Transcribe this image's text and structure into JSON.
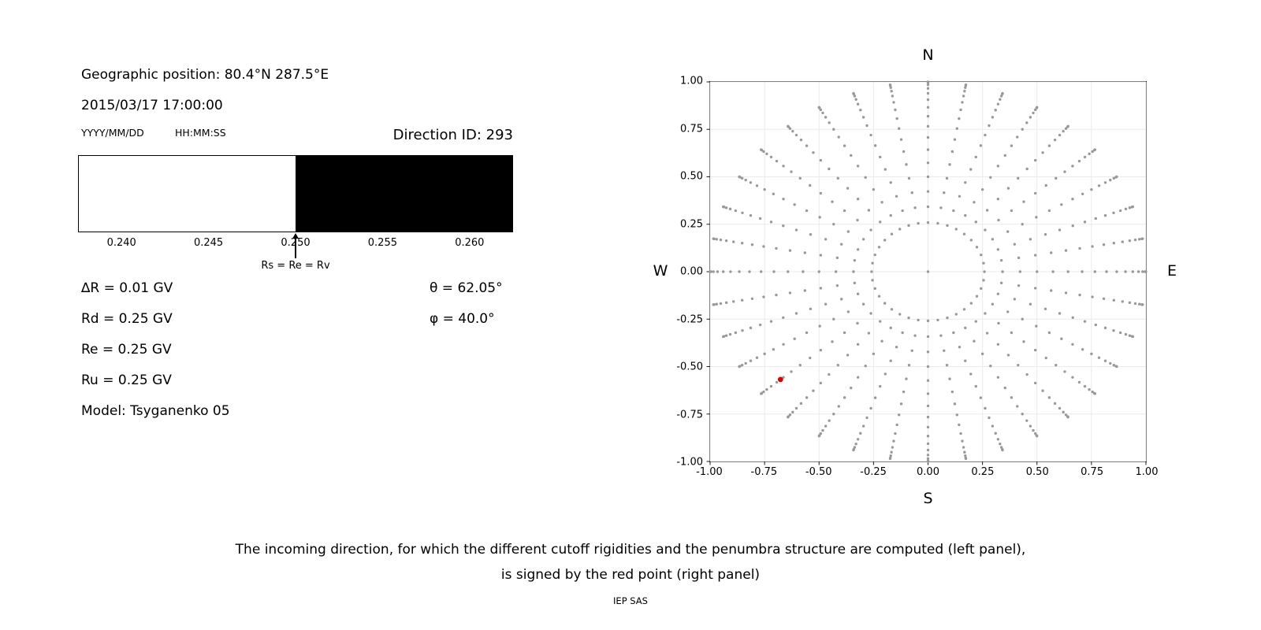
{
  "page": {
    "background": "#ffffff",
    "caption": {
      "line1": "The incoming direction, for which the different cutoff rigidities and the penumbra structure are computed (left panel),",
      "line2": "is signed by the red point (right panel)",
      "credit": "IEP SAS"
    }
  },
  "left_panel": {
    "geo_position": "Geographic position: 80.4°N 287.5°E",
    "datetime": "2015/03/17 17:00:00",
    "date_format": "YYYY/MM/DD",
    "time_format": "HH:MM:SS",
    "direction_id": "Direction ID: 293",
    "params_left": [
      "∆R = 0.01 GV",
      "Rd = 0.25 GV",
      "Re = 0.25 GV",
      "Ru = 0.25 GV",
      "Model: Tsyganenko 05"
    ],
    "params_right": [
      "θ = 62.05°",
      "φ = 40.0°"
    ]
  },
  "chart_data": [
    {
      "type": "bar",
      "name": "penumbra-structure",
      "xlim": [
        0.2375,
        0.2625
      ],
      "xticks": [
        0.24,
        0.245,
        0.25,
        0.255,
        0.26
      ],
      "xtick_labels": [
        "0.240",
        "0.245",
        "0.250",
        "0.255",
        "0.260"
      ],
      "segments": [
        {
          "from": 0.2375,
          "to": 0.25,
          "color": "#ffffff"
        },
        {
          "from": 0.25,
          "to": 0.2625,
          "color": "#000000"
        }
      ],
      "annotation": {
        "x": 0.25,
        "label": "Rs = Re = Rv"
      }
    },
    {
      "type": "scatter",
      "name": "incoming-directions",
      "xlim": [
        -1.0,
        1.0
      ],
      "ylim": [
        -1.0,
        1.0
      ],
      "xticks": [
        -1.0,
        -0.75,
        -0.5,
        -0.25,
        0.0,
        0.25,
        0.5,
        0.75,
        1.0
      ],
      "xtick_labels": [
        "-1.00",
        "-0.75",
        "-0.50",
        "-0.25",
        "0.00",
        "0.25",
        "0.50",
        "0.75",
        "1.00"
      ],
      "yticks": [
        1.0,
        0.75,
        0.5,
        0.25,
        0.0,
        -0.25,
        -0.5,
        -0.75,
        -1.0
      ],
      "ytick_labels": [
        "1.00",
        "0.75",
        "0.50",
        "0.25",
        "0.00",
        "-0.25",
        "-0.50",
        "-0.75",
        "-1.00"
      ],
      "compass_labels": {
        "top": "N",
        "bottom": "S",
        "left": "W",
        "right": "E"
      },
      "grid": true,
      "grid_color": "#ebebeb",
      "point_color": "#999999",
      "spokes": {
        "azimuth_start_deg": 0,
        "azimuth_step_deg": 10,
        "azimuth_count": 36,
        "zenith_min_deg": 15,
        "zenith_max_deg": 90,
        "zenith_step_deg": 5,
        "radius_mapping": "sin(zenith)"
      },
      "center_point": {
        "x": 0.0,
        "y": 0.0
      },
      "highlight_point": {
        "x": -0.677,
        "y": -0.568,
        "color": "#e00000"
      }
    }
  ]
}
